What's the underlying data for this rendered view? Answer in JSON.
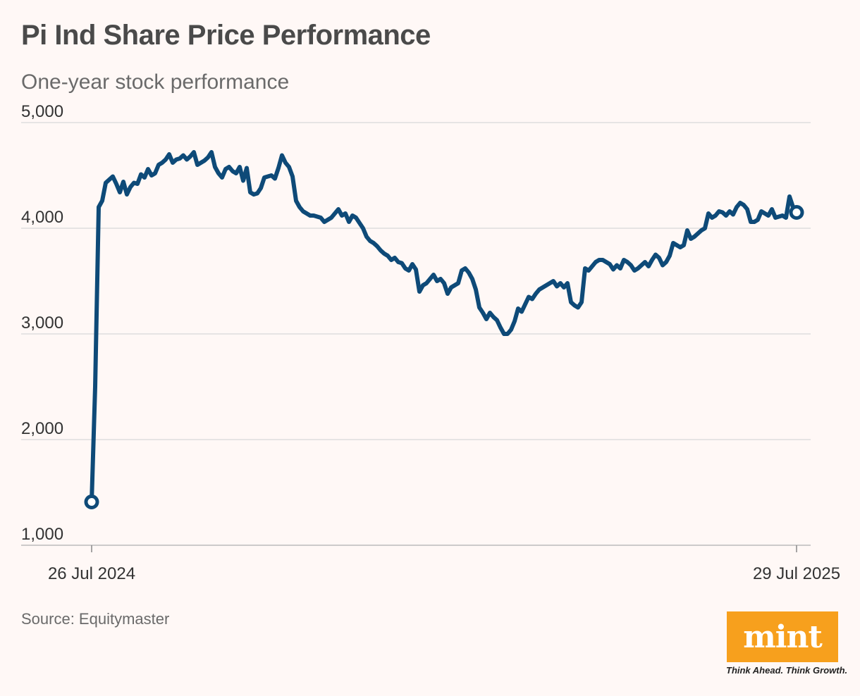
{
  "title": "Pi Ind Share Price Performance",
  "subtitle": "One-year stock performance",
  "source": "Source: Equitymaster",
  "brand": {
    "name": "mint",
    "tagline": "Think Ahead. Think Growth.",
    "color": "#f7a01d"
  },
  "colors": {
    "line": "#0e4a78",
    "grid": "#dddddd",
    "axis_text": "#333333"
  },
  "chart_data": {
    "type": "line",
    "title": "Pi Ind Share Price Performance",
    "xlabel": "",
    "ylabel": "",
    "ylim": [
      1000,
      5000
    ],
    "yticks": [
      1000,
      2000,
      3000,
      4000,
      5000
    ],
    "ytick_labels": [
      "1,000",
      "2,000",
      "3,000",
      "4,000",
      "5,000"
    ],
    "x_start_label": "26 Jul 2024",
    "x_end_label": "29 Jul 2025",
    "grid": true,
    "series": [
      {
        "name": "Pi Ind",
        "markers": "endpoints",
        "values": [
          1410,
          2500,
          4200,
          4260,
          4430,
          4460,
          4490,
          4420,
          4340,
          4440,
          4320,
          4390,
          4430,
          4420,
          4510,
          4480,
          4560,
          4500,
          4520,
          4600,
          4620,
          4650,
          4700,
          4620,
          4650,
          4660,
          4690,
          4650,
          4680,
          4720,
          4600,
          4620,
          4640,
          4670,
          4720,
          4580,
          4520,
          4480,
          4560,
          4580,
          4540,
          4520,
          4580,
          4450,
          4570,
          4340,
          4320,
          4330,
          4380,
          4480,
          4490,
          4500,
          4470,
          4570,
          4690,
          4620,
          4580,
          4490,
          4260,
          4200,
          4160,
          4140,
          4120,
          4120,
          4110,
          4100,
          4060,
          4080,
          4100,
          4140,
          4180,
          4120,
          4140,
          4060,
          4120,
          4100,
          4050,
          4000,
          3920,
          3880,
          3860,
          3830,
          3790,
          3760,
          3740,
          3700,
          3720,
          3680,
          3670,
          3620,
          3600,
          3660,
          3610,
          3400,
          3460,
          3480,
          3520,
          3560,
          3500,
          3520,
          3480,
          3380,
          3440,
          3460,
          3480,
          3600,
          3620,
          3580,
          3520,
          3420,
          3250,
          3200,
          3140,
          3200,
          3160,
          3130,
          3060,
          3000,
          3000,
          3040,
          3120,
          3240,
          3210,
          3280,
          3350,
          3330,
          3380,
          3420,
          3440,
          3460,
          3480,
          3500,
          3450,
          3480,
          3440,
          3480,
          3300,
          3270,
          3250,
          3300,
          3620,
          3600,
          3640,
          3680,
          3700,
          3700,
          3680,
          3660,
          3610,
          3650,
          3620,
          3700,
          3680,
          3650,
          3600,
          3620,
          3650,
          3680,
          3640,
          3700,
          3750,
          3720,
          3650,
          3680,
          3740,
          3860,
          3840,
          3820,
          3840,
          3980,
          3900,
          3920,
          3950,
          3980,
          4000,
          4140,
          4100,
          4120,
          4160,
          4150,
          4120,
          4160,
          4130,
          4200,
          4240,
          4220,
          4180,
          4060,
          4060,
          4080,
          4160,
          4140,
          4120,
          4180,
          4100,
          4110,
          4120,
          4100,
          4300,
          4200,
          4150
        ]
      }
    ]
  }
}
